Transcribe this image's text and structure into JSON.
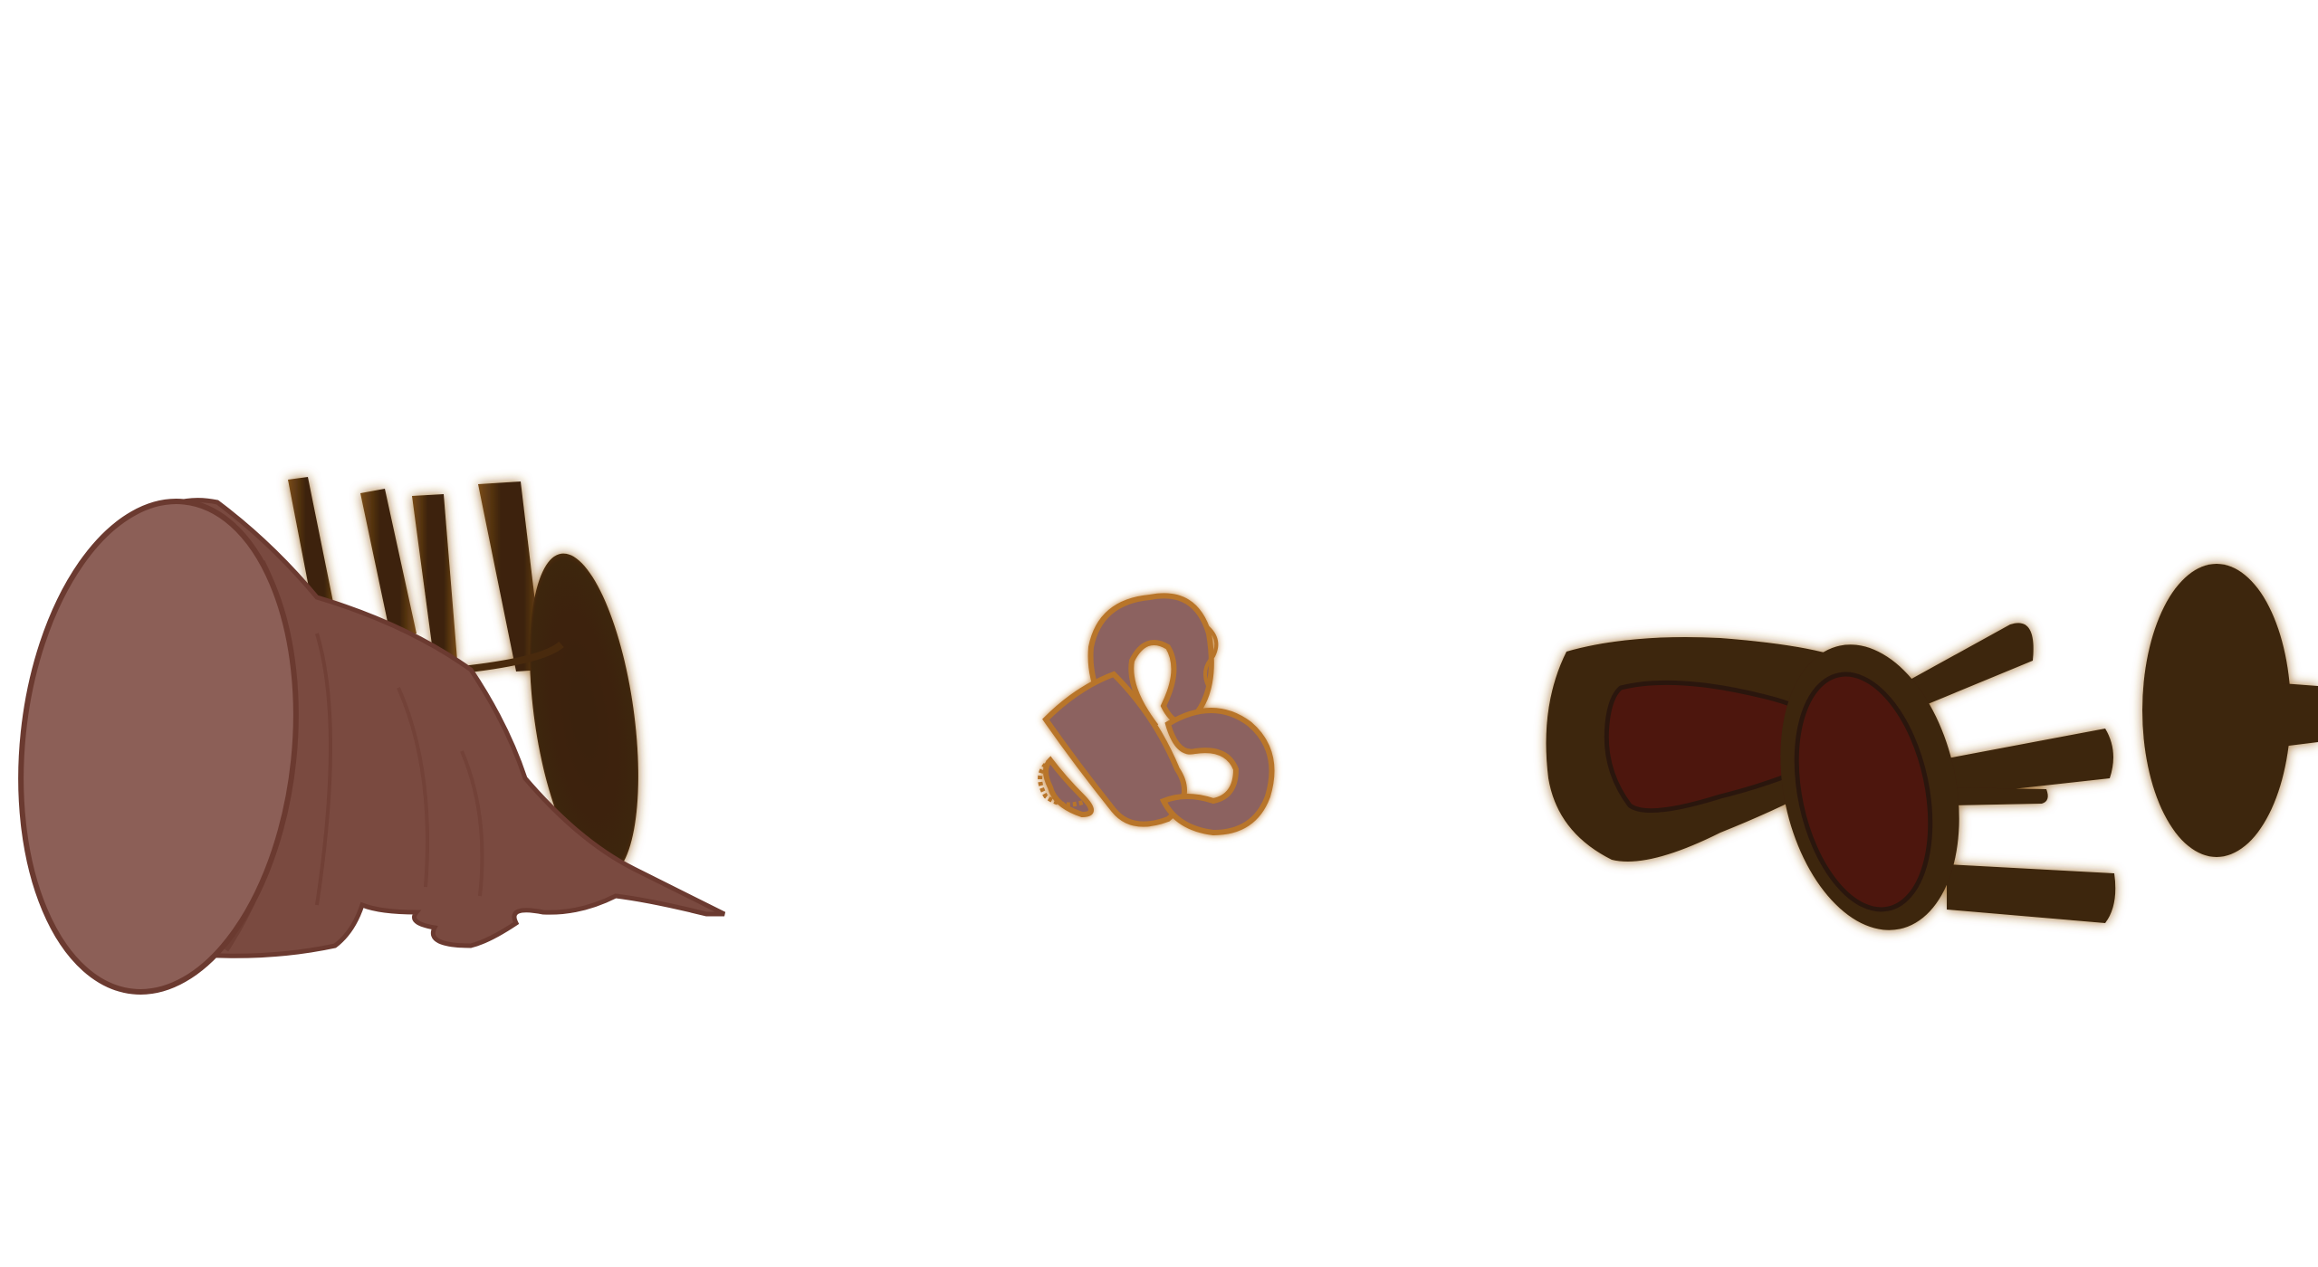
{
  "scene": {
    "background_color": "#ffffff",
    "sprites": [
      {
        "name": "overturned-stool-with-sack",
        "icon": "tipped-stool-icon"
      },
      {
        "name": "tangled-rope-pretzel",
        "icon": "rope-knot-icon"
      },
      {
        "name": "toppled-red-cushion-chair",
        "icon": "fallen-chair-icon"
      },
      {
        "name": "stool-seat-edge",
        "icon": "stool-icon"
      }
    ],
    "colors": {
      "wood_dark": "#3a230e",
      "wood_mid": "#5a3612",
      "wood_glow": "#8a5a1e",
      "sack_fill": "#7a4a40",
      "sack_light": "#8c5f57",
      "sack_outline": "#6b3a30",
      "rope_fill": "#8c6260",
      "rope_outline": "#b8742a",
      "cushion_red": "#4e1408"
    }
  }
}
